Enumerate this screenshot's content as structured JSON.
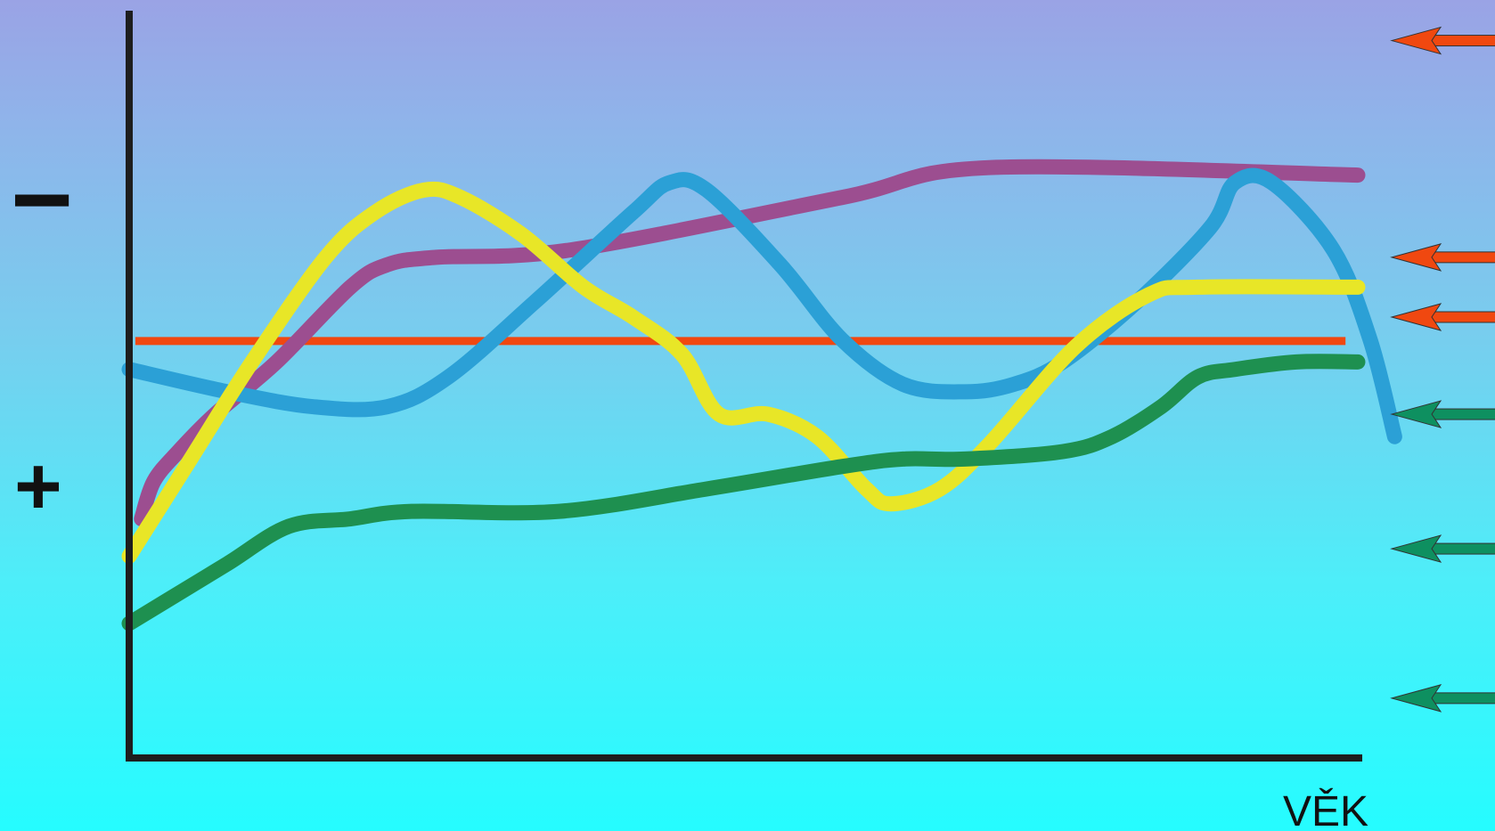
{
  "chart_data": {
    "type": "line",
    "xlabel": "VĚK",
    "ylabel_top": "−",
    "ylabel_bottom": "+",
    "x_range": [
      0,
      100
    ],
    "y_range": [
      0,
      100
    ],
    "grid": false,
    "legend": "none",
    "reference_line": {
      "y": 55.8,
      "color": "#f04810"
    },
    "series": [
      {
        "color": "#9c4e90",
        "points": [
          [
            1,
            32
          ],
          [
            2,
            37
          ],
          [
            4,
            41
          ],
          [
            7,
            46
          ],
          [
            12,
            53
          ],
          [
            18,
            63
          ],
          [
            21,
            66
          ],
          [
            25,
            67
          ],
          [
            36,
            68
          ],
          [
            58,
            75
          ],
          [
            70,
            79
          ],
          [
            100,
            78
          ]
        ]
      },
      {
        "color": "#2ba0d6",
        "points": [
          [
            0,
            52
          ],
          [
            8,
            49
          ],
          [
            15,
            47
          ],
          [
            21,
            47
          ],
          [
            26,
            51
          ],
          [
            33,
            61
          ],
          [
            41,
            73
          ],
          [
            44,
            77
          ],
          [
            47,
            76
          ],
          [
            53,
            66
          ],
          [
            58,
            56
          ],
          [
            63,
            50
          ],
          [
            68,
            49
          ],
          [
            72,
            50
          ],
          [
            76,
            53
          ],
          [
            82,
            61
          ],
          [
            88,
            71
          ],
          [
            90,
            77
          ],
          [
            93,
            77
          ],
          [
            98,
            68
          ],
          [
            101,
            56
          ],
          [
            103,
            43
          ]
        ]
      },
      {
        "color": "#e8e627",
        "points": [
          [
            0,
            27
          ],
          [
            5,
            40
          ],
          [
            10,
            53
          ],
          [
            16,
            67
          ],
          [
            20,
            73
          ],
          [
            24,
            76
          ],
          [
            27,
            75
          ],
          [
            32,
            70
          ],
          [
            37,
            63
          ],
          [
            41,
            59
          ],
          [
            45,
            54
          ],
          [
            48,
            46
          ],
          [
            52,
            46
          ],
          [
            56,
            43
          ],
          [
            60,
            36
          ],
          [
            62,
            34
          ],
          [
            66,
            36
          ],
          [
            70,
            42
          ],
          [
            77,
            55
          ],
          [
            83,
            62
          ],
          [
            87,
            63
          ],
          [
            100,
            63
          ]
        ]
      },
      {
        "color": "#1e9050",
        "points": [
          [
            0,
            18
          ],
          [
            3,
            21
          ],
          [
            8,
            26
          ],
          [
            13,
            31
          ],
          [
            18,
            32
          ],
          [
            23,
            33
          ],
          [
            35,
            33
          ],
          [
            47,
            36
          ],
          [
            58,
            39
          ],
          [
            63,
            40
          ],
          [
            68,
            40
          ],
          [
            76,
            41
          ],
          [
            80,
            43
          ],
          [
            84,
            47
          ],
          [
            87,
            51
          ],
          [
            90,
            52
          ],
          [
            95,
            53
          ],
          [
            100,
            53
          ]
        ]
      }
    ],
    "arrows": [
      {
        "color": "#f04810",
        "y": 96
      },
      {
        "color": "#f04810",
        "y": 67
      },
      {
        "color": "#f04810",
        "y": 59
      },
      {
        "color": "#0e9060",
        "y": 46
      },
      {
        "color": "#0e9060",
        "y": 28
      },
      {
        "color": "#0e9060",
        "y": 8
      }
    ]
  }
}
